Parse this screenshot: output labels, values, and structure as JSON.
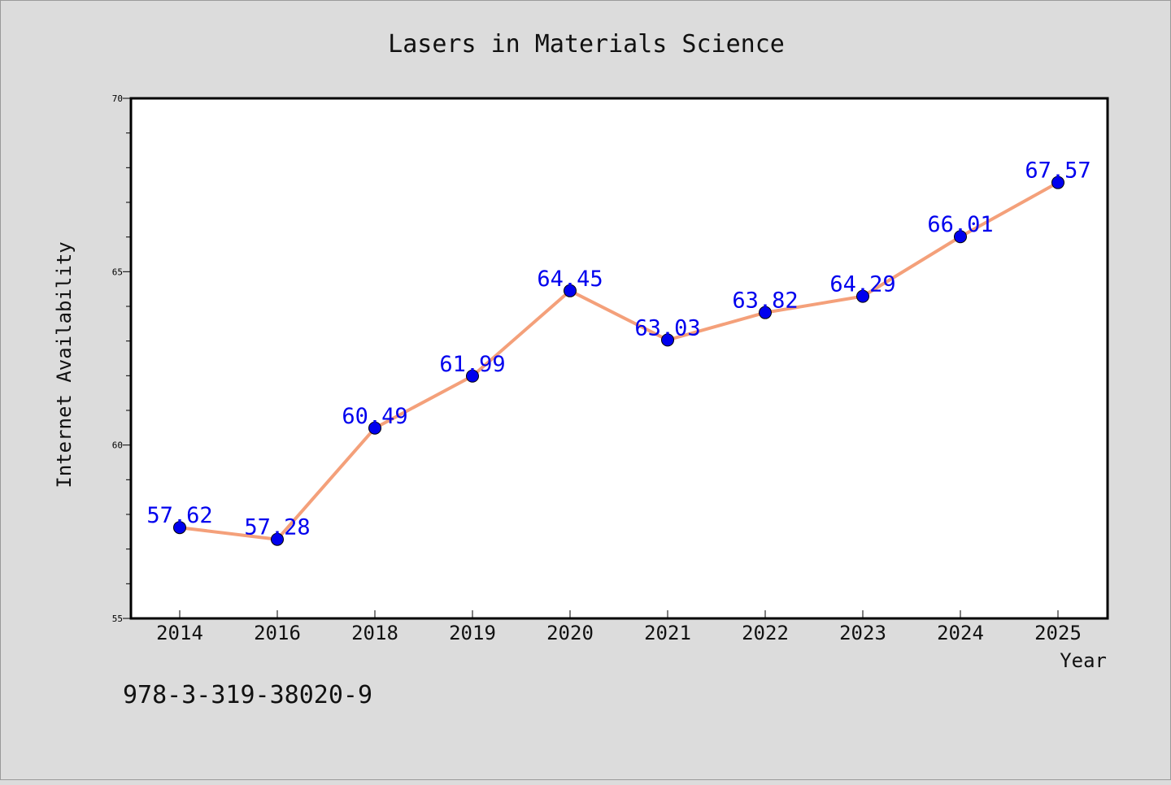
{
  "chart_data": {
    "type": "line",
    "title": "Lasers in Materials Science",
    "xlabel": "Year",
    "ylabel": "Internet Availability",
    "categories": [
      "2014",
      "2016",
      "2018",
      "2019",
      "2020",
      "2021",
      "2022",
      "2023",
      "2024",
      "2025"
    ],
    "series": [
      {
        "values": [
          57.62,
          57.28,
          60.49,
          61.99,
          64.45,
          63.03,
          63.82,
          64.29,
          66.01,
          67.57
        ],
        "labels": [
          "57.62",
          "57.28",
          "60.49",
          "61.99",
          "64.45",
          "63.03",
          "63.82",
          "64.29",
          "66.01",
          "67.57"
        ],
        "line_color": "#f4a07a",
        "marker_color": "#0000ee"
      }
    ],
    "ylim": [
      55,
      70
    ],
    "yticks": [
      "55",
      "60",
      "65",
      "70"
    ],
    "grid": false,
    "legend": "none"
  },
  "footer": {
    "isbn": "978-3-319-38020-9"
  },
  "colors": {
    "background": "#dcdcdc",
    "plot_background": "#ffffff",
    "label_color": "#0000ee"
  }
}
